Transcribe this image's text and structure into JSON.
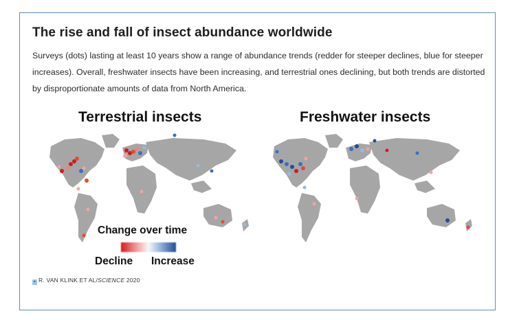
{
  "article": {
    "title": "The rise and fall of insect abundance worldwide",
    "description": "Surveys (dots) lasting at least 10 years show a range of abundance trends (redder for steeper declines, blue for steeper increases). Overall, freshwater insects have been increasing, and terrestrial ones declining, but both trends are distorted by disproportionate amounts of data from North America."
  },
  "maps": {
    "terrestrial_title": "Terrestrial insects",
    "freshwater_title": "Freshwater insects"
  },
  "legend": {
    "title": "Change over time",
    "low_label": "Decline",
    "high_label": "Increase",
    "colors": {
      "decline": "#d7191c",
      "neutral": "#f7f7f7",
      "increase": "#1f4e9b"
    }
  },
  "credit": {
    "prefix": "R. VAN KLINK ET AL/",
    "journal": "SCIENCE",
    "year": " 2020"
  },
  "colors": {
    "land": "#a6a6a6",
    "frame_border": "#5b8db8"
  }
}
